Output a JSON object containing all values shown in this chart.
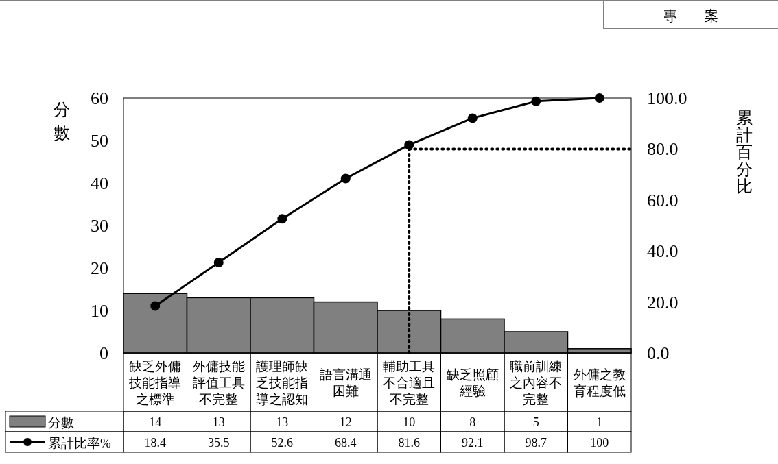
{
  "chart_data": {
    "type": "bar",
    "ylabel": "分數",
    "y2label": "累計百分比",
    "annotations": [
      "專　　案"
    ],
    "categories": [
      "缺乏外傭技能指導之標準",
      "外傭技能評值工具不完整",
      "護理師缺乏技能指導之認知",
      "語言溝通困難",
      "輔助工具不合適且不完整",
      "缺乏照顧經驗",
      "職前訓練之內容不完整",
      "外傭之教育程度低"
    ],
    "series": [
      {
        "name": "分數",
        "color": "#808080",
        "values": [
          14,
          13,
          13,
          12,
          10,
          8,
          5,
          1
        ]
      },
      {
        "name": "累計比率%",
        "type": "line",
        "axis": "y2",
        "color": "#000000",
        "marker": "circle",
        "values": [
          18.4,
          35.5,
          52.6,
          68.4,
          81.6,
          92.1,
          98.7,
          100
        ]
      }
    ],
    "ylim": [
      0,
      60
    ],
    "yticks": [
      0,
      10,
      20,
      30,
      40,
      50,
      60
    ],
    "y2lim": [
      0,
      100
    ],
    "y2ticks": [
      {
        "value": 0,
        "label": "0.0"
      },
      {
        "value": 20,
        "label": "20.0"
      },
      {
        "value": 40,
        "label": "40.0"
      },
      {
        "value": 60,
        "label": "60.0"
      },
      {
        "value": 80,
        "label": "80.0"
      },
      {
        "value": 100,
        "label": "100.0"
      }
    ],
    "ref_lines": [
      {
        "axis": "x",
        "value": "輔助工具不合適且不完整",
        "line_style": "dotted",
        "color": "#000000"
      },
      {
        "axis": "y2",
        "value": 80,
        "line_style": "dotted",
        "color": "#000000"
      }
    ],
    "data_labels": true,
    "legend": "bottom",
    "grid": false
  }
}
